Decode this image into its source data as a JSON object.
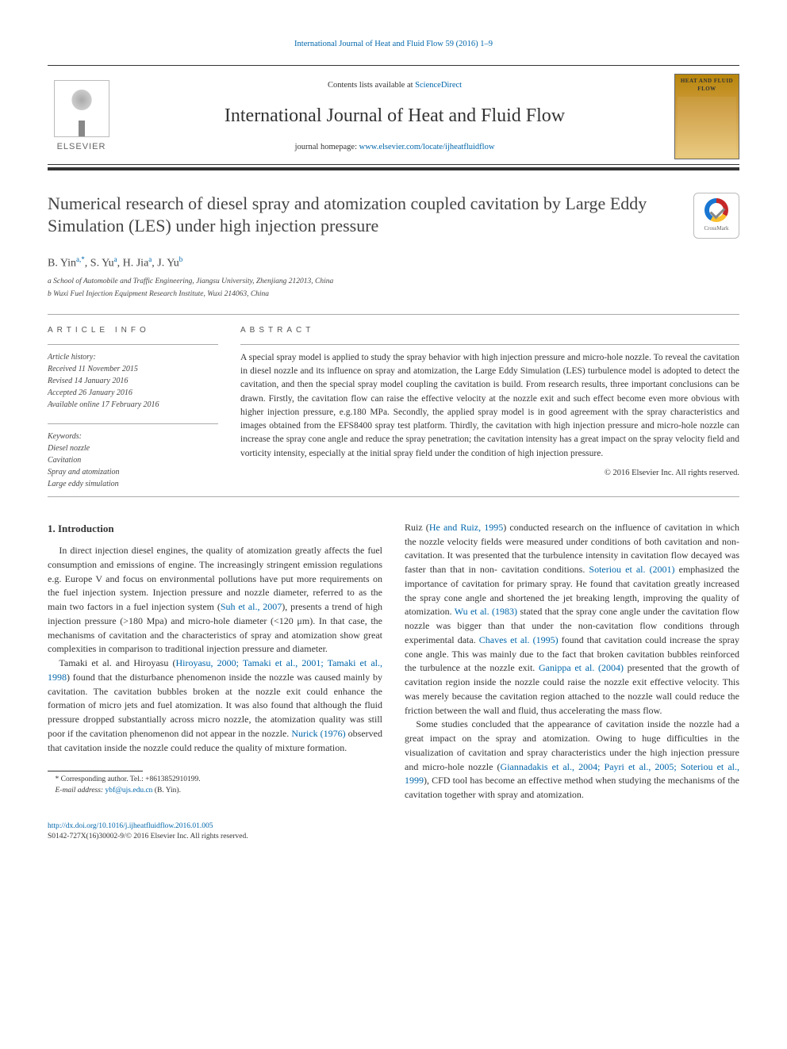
{
  "header": {
    "citation": "International Journal of Heat and Fluid Flow 59 (2016) 1–9",
    "contents_prefix": "Contents lists available at ",
    "contents_link": "ScienceDirect",
    "journal_name": "International Journal of Heat and Fluid Flow",
    "homepage_prefix": "journal homepage: ",
    "homepage_url": "www.elsevier.com/locate/ijheatfluidflow",
    "publisher": "ELSEVIER",
    "cover_title": "HEAT AND FLUID FLOW"
  },
  "crossmark": {
    "label": "CrossMark"
  },
  "article": {
    "title": "Numerical research of diesel spray and atomization coupled cavitation by Large Eddy Simulation (LES) under high injection pressure",
    "authors_html": "B. Yin<sup>a,*</sup>, S. Yu<sup>a</sup>, H. Jia<sup>a</sup>, J. Yu<sup>b</sup>",
    "affiliations": [
      "a School of Automobile and Traffic Engineering, Jiangsu University, Zhenjiang 212013, China",
      "b Wuxi Fuel Injection Equipment Research Institute, Wuxi 214063, China"
    ]
  },
  "info": {
    "heading": "ARTICLE INFO",
    "history_label": "Article history:",
    "history": [
      "Received 11 November 2015",
      "Revised 14 January 2016",
      "Accepted 26 January 2016",
      "Available online 17 February 2016"
    ],
    "keywords_label": "Keywords:",
    "keywords": [
      "Diesel nozzle",
      "Cavitation",
      "Spray and atomization",
      "Large eddy simulation"
    ]
  },
  "abstract": {
    "heading": "ABSTRACT",
    "text": "A special spray model is applied to study the spray behavior with high injection pressure and micro-hole nozzle. To reveal the cavitation in diesel nozzle and its influence on spray and atomization, the Large Eddy Simulation (LES) turbulence model is adopted to detect the cavitation, and then the special spray model coupling the cavitation is build. From research results, three important conclusions can be drawn. Firstly, the cavitation flow can raise the effective velocity at the nozzle exit and such effect become even more obvious with higher injection pressure, e.g.180 MPa. Secondly, the applied spray model is in good agreement with the spray characteristics and images obtained from the EFS8400 spray test platform. Thirdly, the cavitation with high injection pressure and micro-hole nozzle can increase the spray cone angle and reduce the spray penetration; the cavitation intensity has a great impact on the spray velocity field and vorticity intensity, especially at the initial spray field under the condition of high injection pressure.",
    "copyright": "© 2016 Elsevier Inc. All rights reserved."
  },
  "intro": {
    "heading": "1. Introduction",
    "p1_a": "In direct injection diesel engines, the quality of atomization greatly affects the fuel consumption and emissions of engine. The increasingly stringent emission regulations e.g. Europe V and focus on environmental pollutions have put more requirements on the fuel injection system. Injection pressure and nozzle diameter, referred to as the main two factors in a fuel injection system (",
    "p1_ref1": "Suh et al., 2007",
    "p1_b": "), presents a trend of high injection pressure (>180 Mpa) and micro-hole diameter (<120 μm). In that case, the mechanisms of cavitation and the characteristics of spray and atomization show great complexities in comparison to traditional injection pressure and diameter.",
    "p2_a": "Tamaki et al. and Hiroyasu (",
    "p2_ref1": "Hiroyasu, 2000; Tamaki et al., 2001; Tamaki et al., 1998",
    "p2_b": ") found that the disturbance phenomenon inside the nozzle was caused mainly by cavitation. The cavitation bubbles broken at the nozzle exit could enhance the formation of micro jets and fuel atomization. It was also found that although the fluid pressure dropped substantially across micro nozzle, the atomization quality was still poor if the cavitation phenomenon did not appear in the nozzle. ",
    "p2_ref2": "Nurick (1976)",
    "p2_c": " observed that cavitation inside the nozzle could reduce the quality of mixture formation. ",
    "p3_a": "Ruiz (",
    "p3_ref1": "He and Ruiz, 1995",
    "p3_b": ") conducted research on the influence of cavitation in which the nozzle velocity fields were measured under conditions of both cavitation and non-cavitation. It was presented that the turbulence intensity in cavitation flow decayed was faster than that in non- cavitation conditions. ",
    "p3_ref2": "Soteriou et al. (2001)",
    "p3_c": " emphasized the importance of cavitation for primary spray. He found that cavitation greatly increased the spray cone angle and shortened the jet breaking length, improving the quality of atomization. ",
    "p3_ref3": "Wu et al. (1983)",
    "p3_d": " stated that the spray cone angle under the cavitation flow nozzle was bigger than that under the non-cavitation flow conditions through experimental data. ",
    "p3_ref4": "Chaves et al. (1995)",
    "p3_e": " found that cavitation could increase the spray cone angle. This was mainly due to the fact that broken cavitation bubbles reinforced the turbulence at the nozzle exit. ",
    "p3_ref5": "Ganippa et al. (2004)",
    "p3_f": " presented that the growth of cavitation region inside the nozzle could raise the nozzle exit effective velocity. This was merely because the cavitation region attached to the nozzle wall could reduce the friction between the wall and fluid, thus accelerating the mass flow.",
    "p4_a": "Some studies concluded that the appearance of cavitation inside the nozzle had a great impact on the spray and atomization. Owing to huge difficulties in the visualization of cavitation and spray characteristics under the high injection pressure and micro-hole nozzle (",
    "p4_ref1": "Giannadakis et al., 2004; Payri et al., 2005; Soteriou et al., 1999",
    "p4_b": "), CFD tool has become an effective method when studying the mechanisms of the cavitation together with spray and atomization."
  },
  "footnote": {
    "corr": "* Corresponding author. Tel.: +8613852910199.",
    "email_label": "E-mail address: ",
    "email": "ybf@ujs.edu.cn",
    "email_suffix": " (B. Yin)."
  },
  "footer": {
    "doi": "http://dx.doi.org/10.1016/j.ijheatfluidflow.2016.01.005",
    "issn": "S0142-727X(16)30002-9/© 2016 Elsevier Inc. All rights reserved."
  },
  "colors": {
    "link": "#0066aa",
    "text": "#333333",
    "rule": "#aaaaaa"
  }
}
